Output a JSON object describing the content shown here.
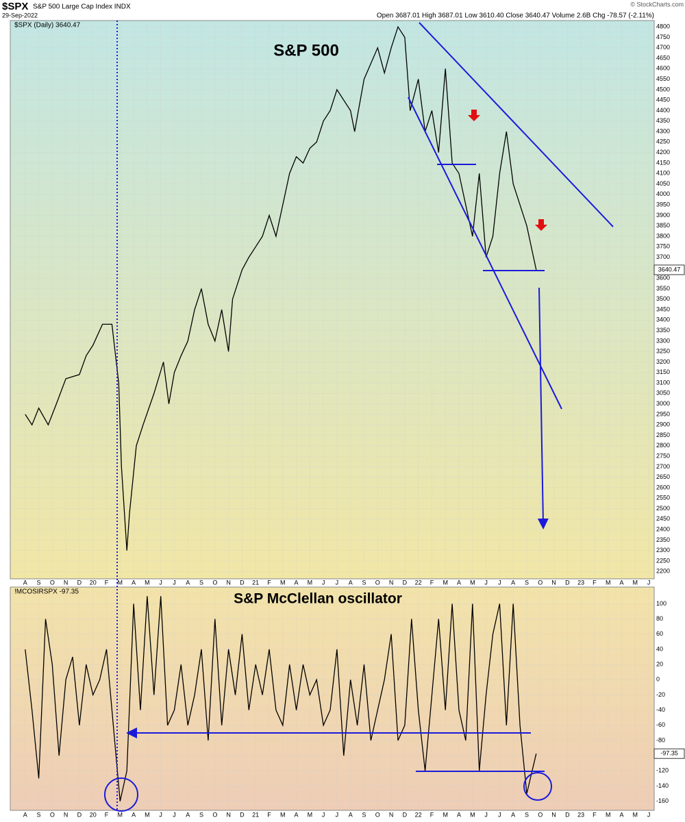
{
  "header": {
    "symbol": "$SPX",
    "name": "S&P 500 Large Cap Index INDX",
    "date": "29-Sep-2022",
    "quote": "Open 3687.01 High 3687.01 Low 3610.40 Close 3640.47 Volume 2.6B Chg -78.57 (-2.11%)",
    "credit": "© StockCharts.com"
  },
  "chart_data": [
    {
      "type": "line",
      "title": "S&P 500",
      "last_label": "3640.47",
      "x": [
        0,
        0.5,
        1,
        1.7,
        2.3,
        3,
        4,
        4.5,
        5,
        5.7,
        6.4,
        6.9,
        7.1,
        7.5,
        7.7,
        8.2,
        8.7,
        9.5,
        10.2,
        10.6,
        11,
        11.5,
        12,
        12.5,
        13,
        13.5,
        14,
        14.5,
        15,
        15.3,
        16,
        16.5,
        17,
        17.5,
        18,
        18.5,
        19,
        19.5,
        20,
        20.5,
        21,
        21.5,
        22,
        22.5,
        23,
        24,
        24.3,
        25,
        26,
        26.5,
        27,
        27.5,
        28,
        28.4,
        29,
        29.5,
        30,
        30.5,
        31,
        31.5,
        32,
        32.5,
        33,
        33.5,
        34,
        34.5,
        35,
        35.5,
        36,
        36.5,
        37,
        37.7
      ],
      "series": [
        {
          "name": "$SPX (Daily) 3640.47",
          "color": "#000000",
          "values": [
            2950,
            2900,
            2980,
            2900,
            3000,
            3120,
            3140,
            3230,
            3280,
            3380,
            3380,
            3100,
            2700,
            2300,
            2480,
            2800,
            2900,
            3050,
            3200,
            3000,
            3150,
            3230,
            3300,
            3450,
            3550,
            3380,
            3300,
            3450,
            3250,
            3500,
            3640,
            3700,
            3750,
            3800,
            3900,
            3800,
            3950,
            4100,
            4180,
            4150,
            4220,
            4250,
            4350,
            4400,
            4500,
            4400,
            4300,
            4550,
            4700,
            4580,
            4700,
            4800,
            4750,
            4400,
            4550,
            4300,
            4400,
            4200,
            4600,
            4150,
            4100,
            3950,
            3800,
            4100,
            3700,
            3800,
            4100,
            4300,
            4050,
            3950,
            3850,
            3640
          ]
        }
      ],
      "xlim": [
        -1.1,
        46.4
      ],
      "ylim": [
        2165,
        4830
      ],
      "xticks": [
        {
          "value": 0,
          "label": "A"
        },
        {
          "value": 1,
          "label": "S"
        },
        {
          "value": 2,
          "label": "O"
        },
        {
          "value": 3,
          "label": "N"
        },
        {
          "value": 4,
          "label": "D"
        },
        {
          "value": 5,
          "label": "20"
        },
        {
          "value": 6,
          "label": "F"
        },
        {
          "value": 7,
          "label": "M"
        },
        {
          "value": 8,
          "label": "A"
        },
        {
          "value": 9,
          "label": "M"
        },
        {
          "value": 10,
          "label": "J"
        },
        {
          "value": 11,
          "label": "J"
        },
        {
          "value": 12,
          "label": "A"
        },
        {
          "value": 13,
          "label": "S"
        },
        {
          "value": 14,
          "label": "O"
        },
        {
          "value": 15,
          "label": "N"
        },
        {
          "value": 16,
          "label": "D"
        },
        {
          "value": 17,
          "label": "21"
        },
        {
          "value": 18,
          "label": "F"
        },
        {
          "value": 19,
          "label": "M"
        },
        {
          "value": 20,
          "label": "A"
        },
        {
          "value": 21,
          "label": "M"
        },
        {
          "value": 22,
          "label": "J"
        },
        {
          "value": 23,
          "label": "J"
        },
        {
          "value": 24,
          "label": "A"
        },
        {
          "value": 25,
          "label": "S"
        },
        {
          "value": 26,
          "label": "O"
        },
        {
          "value": 27,
          "label": "N"
        },
        {
          "value": 28,
          "label": "D"
        },
        {
          "value": 29,
          "label": "22"
        },
        {
          "value": 30,
          "label": "F"
        },
        {
          "value": 31,
          "label": "M"
        },
        {
          "value": 32,
          "label": "A"
        },
        {
          "value": 33,
          "label": "M"
        },
        {
          "value": 34,
          "label": "J"
        },
        {
          "value": 35,
          "label": "J"
        },
        {
          "value": 36,
          "label": "A"
        },
        {
          "value": 37,
          "label": "S"
        },
        {
          "value": 38,
          "label": "O"
        },
        {
          "value": 39,
          "label": "N"
        },
        {
          "value": 40,
          "label": "D"
        },
        {
          "value": 41,
          "label": "23"
        },
        {
          "value": 42,
          "label": "F"
        },
        {
          "value": 43,
          "label": "M"
        },
        {
          "value": 44,
          "label": "A"
        },
        {
          "value": 45,
          "label": "M"
        },
        {
          "value": 46,
          "label": "J"
        }
      ],
      "yticks": [
        2200,
        2250,
        2300,
        2350,
        2400,
        2450,
        2500,
        2550,
        2600,
        2650,
        2700,
        2750,
        2800,
        2850,
        2900,
        2950,
        3000,
        3050,
        3100,
        3150,
        3200,
        3250,
        3300,
        3350,
        3400,
        3450,
        3500,
        3550,
        3600,
        3650,
        3700,
        3750,
        3800,
        3850,
        3900,
        3950,
        4000,
        4050,
        4100,
        4150,
        4200,
        4250,
        4300,
        4350,
        4400,
        4450,
        4500,
        4550,
        4600,
        4650,
        4700,
        4750,
        4800
      ],
      "grid": true
    },
    {
      "type": "line",
      "title": "S&P McClellan oscillator",
      "last_label": "-97.35",
      "x": [
        0,
        0.5,
        1,
        1.5,
        2,
        2.5,
        3,
        3.5,
        4,
        4.5,
        5,
        5.5,
        6,
        6.5,
        7,
        7.5,
        8,
        8.5,
        9,
        9.5,
        10,
        10.5,
        11,
        11.5,
        12,
        12.5,
        13,
        13.5,
        14,
        14.5,
        15,
        15.5,
        16,
        16.5,
        17,
        17.5,
        18,
        18.5,
        19,
        19.5,
        20,
        20.5,
        21,
        21.5,
        22,
        22.5,
        23,
        23.5,
        24,
        24.5,
        25,
        25.5,
        26,
        26.5,
        27,
        27.5,
        28,
        28.5,
        29,
        29.5,
        30,
        30.5,
        31,
        31.5,
        32,
        32.5,
        33,
        33.5,
        34,
        34.5,
        35,
        35.5,
        36,
        36.5,
        37,
        37.7
      ],
      "series": [
        {
          "name": "!MCOSIRSPX -97.35",
          "color": "#000000",
          "values": [
            40,
            -40,
            -130,
            80,
            20,
            -100,
            0,
            30,
            -60,
            20,
            -20,
            0,
            40,
            -60,
            -160,
            -120,
            100,
            -40,
            110,
            -20,
            110,
            -60,
            -40,
            20,
            -60,
            -20,
            40,
            -80,
            80,
            -60,
            40,
            -20,
            60,
            -40,
            20,
            -20,
            40,
            -40,
            -60,
            20,
            -40,
            20,
            -20,
            0,
            -60,
            -40,
            40,
            -100,
            0,
            -60,
            20,
            -80,
            -40,
            0,
            60,
            -80,
            -60,
            80,
            -40,
            -120,
            -20,
            80,
            -40,
            100,
            -40,
            -80,
            100,
            -120,
            -20,
            60,
            100,
            -60,
            100,
            -60,
            -150,
            -97.35
          ]
        }
      ],
      "xlim": [
        -1.1,
        46.4
      ],
      "ylim": [
        -172,
        122
      ],
      "xticks": [
        {
          "value": 0,
          "label": "A"
        },
        {
          "value": 1,
          "label": "S"
        },
        {
          "value": 2,
          "label": "O"
        },
        {
          "value": 3,
          "label": "N"
        },
        {
          "value": 4,
          "label": "D"
        },
        {
          "value": 5,
          "label": "20"
        },
        {
          "value": 6,
          "label": "F"
        },
        {
          "value": 7,
          "label": "M"
        },
        {
          "value": 8,
          "label": "A"
        },
        {
          "value": 9,
          "label": "M"
        },
        {
          "value": 10,
          "label": "J"
        },
        {
          "value": 11,
          "label": "J"
        },
        {
          "value": 12,
          "label": "A"
        },
        {
          "value": 13,
          "label": "S"
        },
        {
          "value": 14,
          "label": "O"
        },
        {
          "value": 15,
          "label": "N"
        },
        {
          "value": 16,
          "label": "D"
        },
        {
          "value": 17,
          "label": "21"
        },
        {
          "value": 18,
          "label": "F"
        },
        {
          "value": 19,
          "label": "M"
        },
        {
          "value": 20,
          "label": "A"
        },
        {
          "value": 21,
          "label": "M"
        },
        {
          "value": 22,
          "label": "J"
        },
        {
          "value": 23,
          "label": "J"
        },
        {
          "value": 24,
          "label": "A"
        },
        {
          "value": 25,
          "label": "S"
        },
        {
          "value": 26,
          "label": "O"
        },
        {
          "value": 27,
          "label": "N"
        },
        {
          "value": 28,
          "label": "D"
        },
        {
          "value": 29,
          "label": "22"
        },
        {
          "value": 30,
          "label": "F"
        },
        {
          "value": 31,
          "label": "M"
        },
        {
          "value": 32,
          "label": "A"
        },
        {
          "value": 33,
          "label": "M"
        },
        {
          "value": 34,
          "label": "J"
        },
        {
          "value": 35,
          "label": "J"
        },
        {
          "value": 36,
          "label": "A"
        },
        {
          "value": 37,
          "label": "S"
        },
        {
          "value": 38,
          "label": "O"
        },
        {
          "value": 39,
          "label": "N"
        },
        {
          "value": 40,
          "label": "D"
        },
        {
          "value": 41,
          "label": "23"
        },
        {
          "value": 42,
          "label": "F"
        },
        {
          "value": 43,
          "label": "M"
        },
        {
          "value": 44,
          "label": "A"
        },
        {
          "value": 45,
          "label": "M"
        },
        {
          "value": 46,
          "label": "J"
        }
      ],
      "yticks": [
        -160,
        -140,
        -120,
        -100,
        -80,
        -60,
        -40,
        -20,
        0,
        20,
        40,
        60,
        80,
        100
      ],
      "grid": true
    }
  ]
}
